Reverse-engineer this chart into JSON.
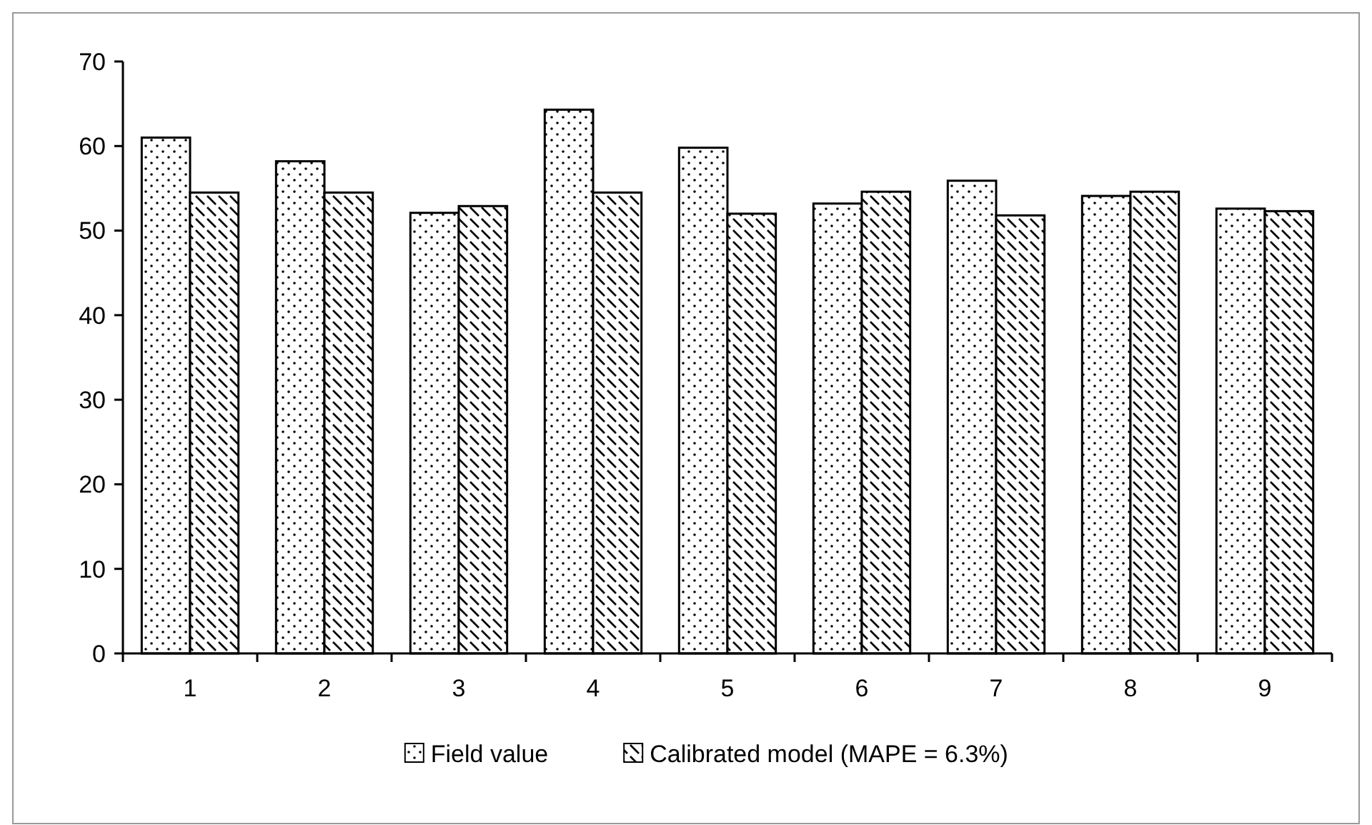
{
  "chart_data": {
    "type": "bar",
    "categories": [
      "1",
      "2",
      "3",
      "4",
      "5",
      "6",
      "7",
      "8",
      "9"
    ],
    "series": [
      {
        "name": "Field value",
        "color": "#000000",
        "values": [
          61.0,
          58.2,
          52.1,
          64.3,
          59.8,
          53.2,
          55.9,
          54.1,
          52.6
        ]
      },
      {
        "name": "Calibrated model (MAPE = 6.3%)",
        "color": "#000000",
        "values": [
          54.5,
          54.5,
          52.9,
          54.5,
          52.0,
          54.6,
          51.8,
          54.6,
          52.3
        ]
      }
    ],
    "ylim": [
      0,
      70
    ],
    "yticks": [
      0,
      10,
      20,
      30,
      40,
      50,
      60,
      70
    ],
    "grid": false,
    "legend": "bottom"
  }
}
